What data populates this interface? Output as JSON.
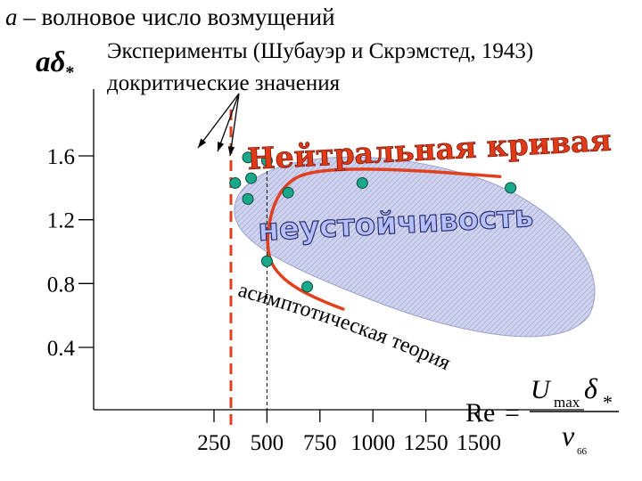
{
  "header": {
    "symbol": "a",
    "title_rest": " – волновое число возмущений",
    "experiments": "Эксперименты (Шубауэр и Скрэмстед, 1943)",
    "precritical": "докритические значения"
  },
  "y_symbol": {
    "main": "aδ",
    "sub": "*"
  },
  "labels": {
    "neutral_curve": "Нейтральная кривая",
    "instability": "неустойчивость",
    "asymptotic_theory": "асимптотическая теория"
  },
  "formula": {
    "lhs": "Re",
    "eq": "=",
    "u": "U",
    "u_sub": "max",
    "delta": "δ",
    "delta_sub": "*",
    "nu": "ν"
  },
  "slide_number": "66",
  "colors": {
    "curve": "#e0401e",
    "dashed": "#e0401e",
    "points": "#19a98a",
    "region_fill": "#c8cdea",
    "region_stroke": "#8a90c0"
  },
  "chart_data": {
    "type": "scatter",
    "title": "",
    "xlabel": "Re",
    "ylabel": "aδ*",
    "xlim": [
      150,
      1650
    ],
    "ylim": [
      0.05,
      1.95
    ],
    "x_ticks": [
      250,
      500,
      750,
      1000,
      1250,
      1500
    ],
    "x_tick_labels": [
      "250",
      "500",
      "750",
      "1000",
      "1250",
      "1500"
    ],
    "y_ticks": [
      0.4,
      0.8,
      1.2,
      1.6
    ],
    "y_tick_labels": [
      "0.4",
      "0.8",
      "1.2",
      "1.6"
    ],
    "points": [
      {
        "x": 350,
        "y": 1.43
      },
      {
        "x": 410,
        "y": 1.33
      },
      {
        "x": 410,
        "y": 1.59
      },
      {
        "x": 425,
        "y": 1.46
      },
      {
        "x": 500,
        "y": 1.57
      },
      {
        "x": 500,
        "y": 0.94
      },
      {
        "x": 600,
        "y": 1.37
      },
      {
        "x": 690,
        "y": 0.78
      },
      {
        "x": 950,
        "y": 1.43
      },
      {
        "x": 1650,
        "y": 1.4
      }
    ],
    "neutral_curve": [
      {
        "x": 1600,
        "y": 1.47
      },
      {
        "x": 1200,
        "y": 1.51
      },
      {
        "x": 900,
        "y": 1.52
      },
      {
        "x": 700,
        "y": 1.5
      },
      {
        "x": 600,
        "y": 1.44
      },
      {
        "x": 530,
        "y": 1.3
      },
      {
        "x": 500,
        "y": 1.1
      },
      {
        "x": 510,
        "y": 0.95
      },
      {
        "x": 560,
        "y": 0.85
      },
      {
        "x": 650,
        "y": 0.76
      },
      {
        "x": 780,
        "y": 0.68
      },
      {
        "x": 860,
        "y": 0.64
      }
    ],
    "critical_re_dashed": 330,
    "reference_line_re": 500,
    "grid": false,
    "legend": "none"
  }
}
